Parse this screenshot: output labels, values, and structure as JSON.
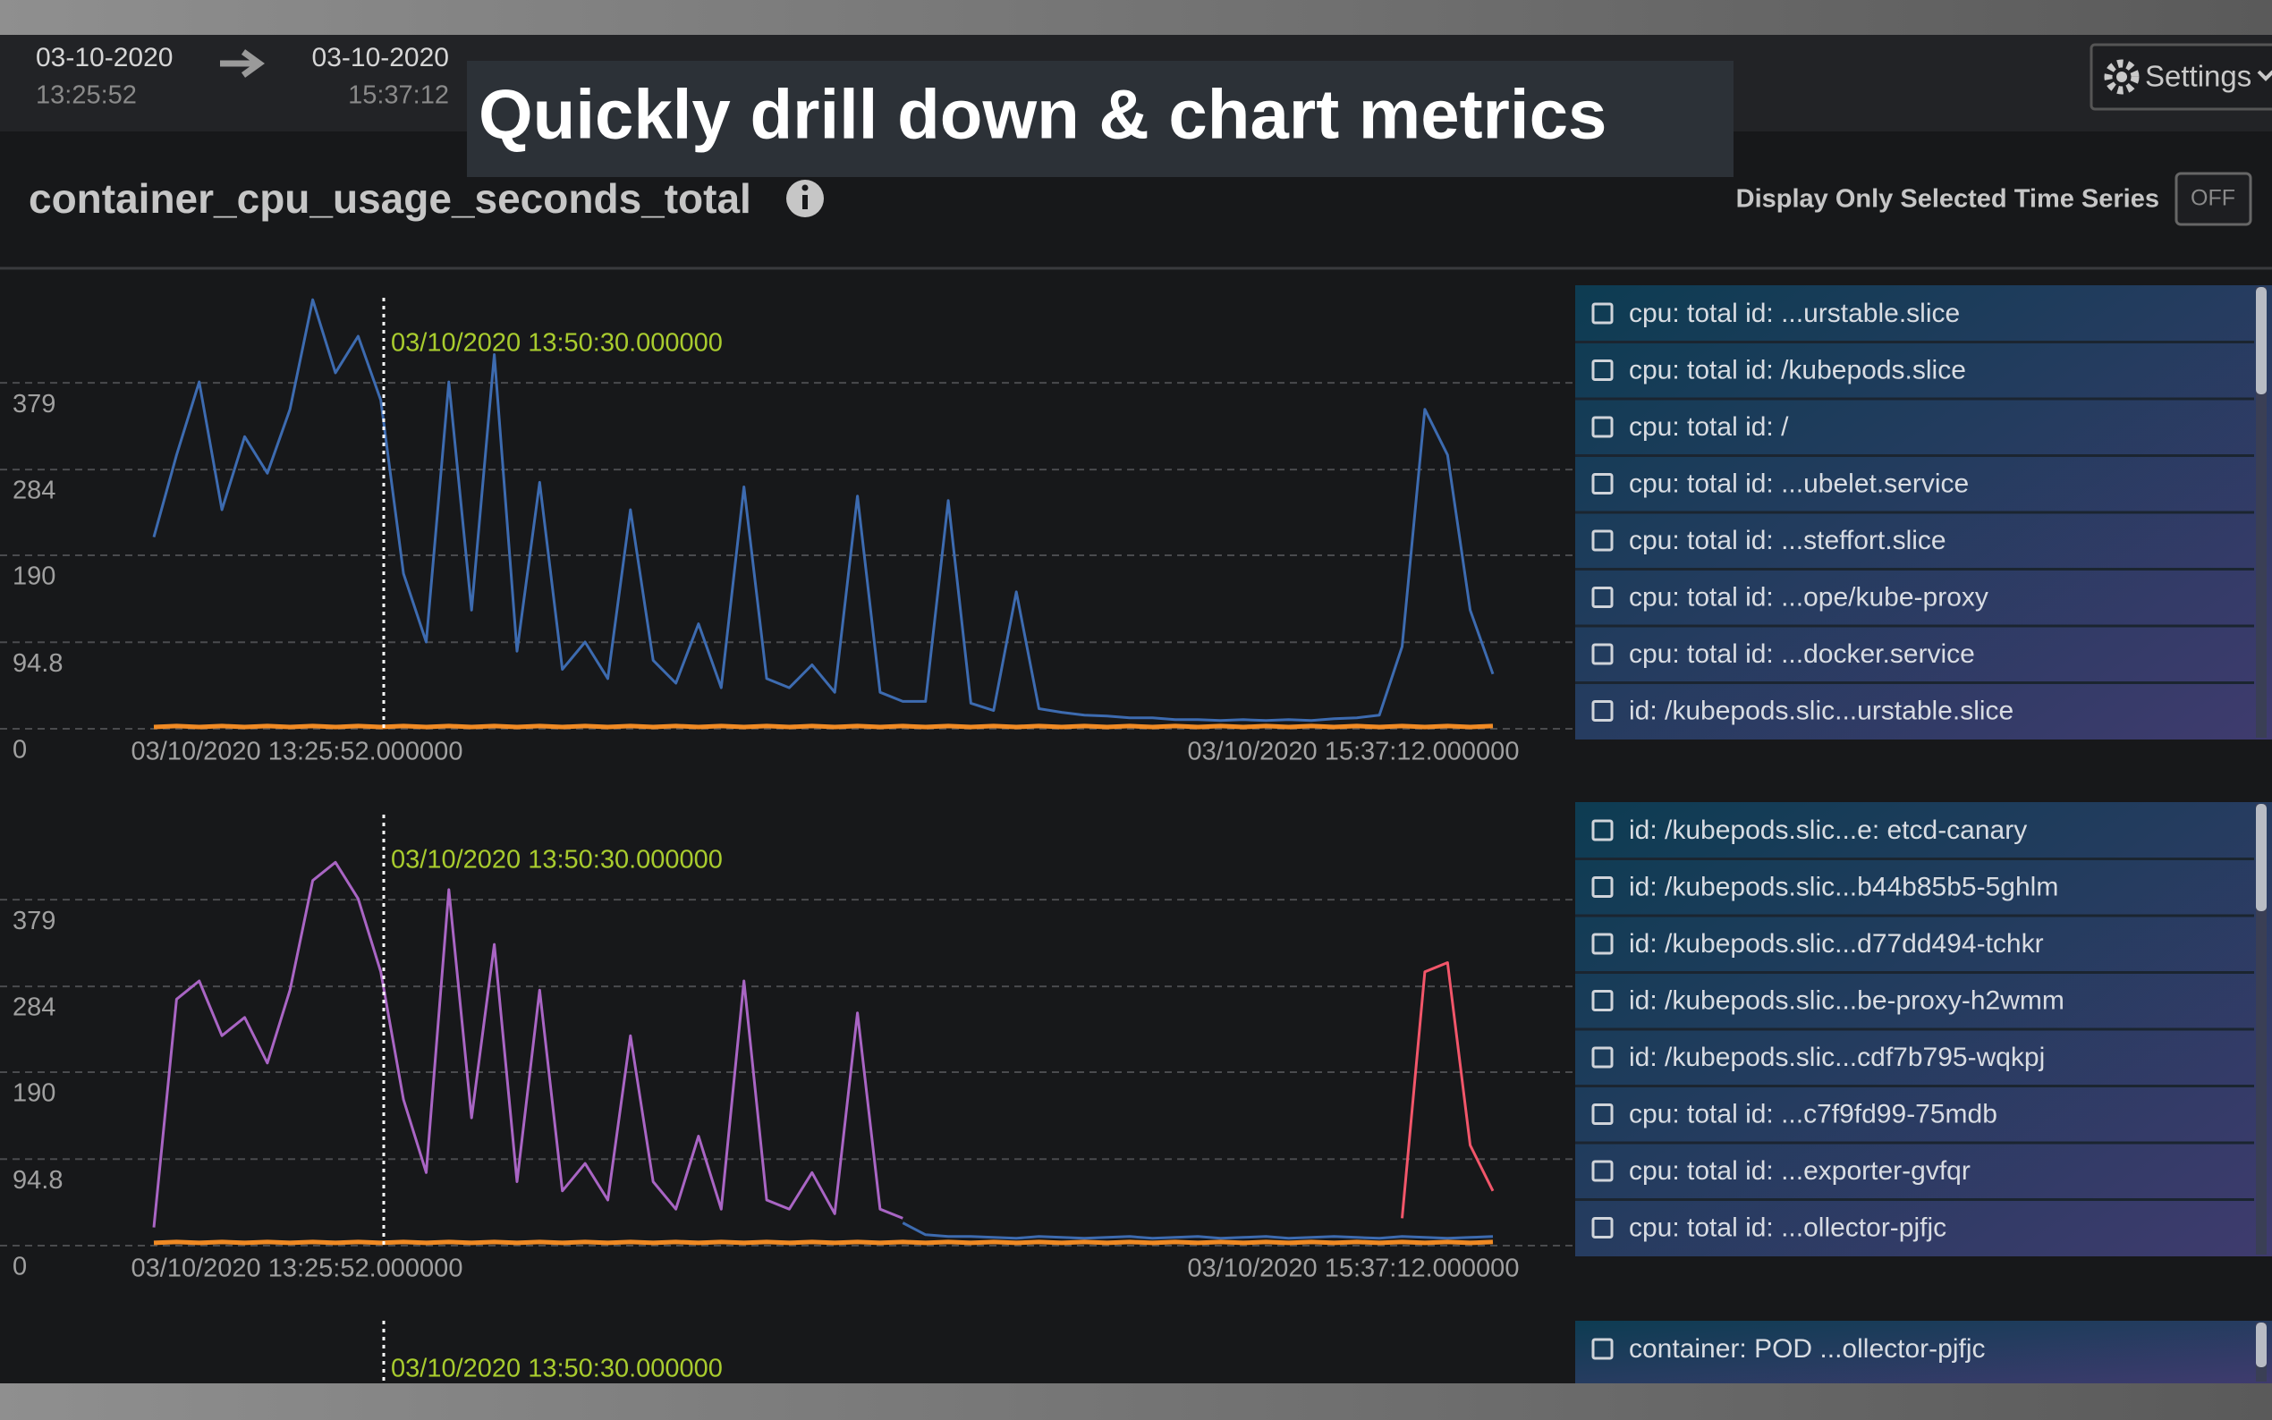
{
  "header": {
    "start_date": "03-10-2020",
    "start_time": "13:25:52",
    "end_date": "03-10-2020",
    "end_time": "15:37:12",
    "banner": "Quickly drill down & chart metrics",
    "settings": "Settings"
  },
  "metric": {
    "title": "container_cpu_usage_seconds_total",
    "toggle_label": "Display Only Selected Time Series",
    "toggle_state": "OFF"
  },
  "panels": [
    {
      "type": "line",
      "ylim": [
        0,
        480
      ],
      "yticks": [
        0,
        94.8,
        190,
        284,
        379
      ],
      "grid": true,
      "x_labels": [
        "03/10/2020 13:25:52.000000",
        "03/10/2020 15:37:12.000000"
      ],
      "cursor_label": "03/10/2020 13:50:30.000000",
      "series": [
        {
          "color": "#3d6bb0",
          "values": [
            210,
            300,
            380,
            240,
            320,
            280,
            350,
            470,
            390,
            430,
            360,
            170,
            95,
            380,
            130,
            410,
            85,
            270,
            65,
            95,
            55,
            240,
            75,
            50,
            115,
            45,
            265,
            55,
            45,
            70,
            40,
            255,
            40,
            30,
            30,
            250,
            28,
            20,
            150,
            22,
            18,
            15,
            14,
            12,
            12,
            10,
            10,
            9,
            10,
            9,
            10,
            9,
            11,
            12,
            15,
            90,
            350,
            300,
            130,
            60
          ]
        },
        {
          "color": "#f08a24",
          "values": [
            2,
            3,
            2,
            3,
            2,
            3,
            2,
            3,
            2,
            3,
            2,
            3,
            2,
            3,
            2,
            3,
            2,
            3,
            2,
            3,
            2,
            3,
            2,
            3,
            2,
            3,
            2,
            3,
            2,
            3,
            2,
            3,
            2,
            3,
            2,
            3,
            2,
            3,
            2,
            3,
            2,
            3,
            2,
            3,
            2,
            3,
            2,
            3,
            2,
            3,
            2,
            3,
            2,
            3,
            2,
            3,
            2,
            3,
            2,
            3
          ]
        }
      ],
      "legend": [
        "cpu: total id: ...urstable.slice",
        "cpu: total id: /kubepods.slice",
        "cpu: total id: /",
        "cpu: total id: ...ubelet.service",
        "cpu: total id: ...steffort.slice",
        "cpu: total id: ...ope/kube-proxy",
        "cpu: total id: ...docker.service",
        "id: /kubepods.slic...urstable.slice"
      ]
    },
    {
      "type": "line",
      "ylim": [
        0,
        480
      ],
      "yticks": [
        0,
        94.8,
        190,
        284,
        379
      ],
      "grid": true,
      "x_labels": [
        "03/10/2020 13:25:52.000000",
        "03/10/2020 15:37:12.000000"
      ],
      "cursor_label": "03/10/2020 13:50:30.000000",
      "series": [
        {
          "color": "#a965c4",
          "values": [
            20,
            270,
            290,
            230,
            250,
            200,
            280,
            400,
            420,
            380,
            300,
            160,
            80,
            390,
            140,
            330,
            70,
            280,
            60,
            90,
            50,
            230,
            70,
            40,
            120,
            40,
            290,
            50,
            40,
            80,
            35,
            255,
            40,
            30,
            null,
            null,
            null,
            null,
            null,
            null,
            null,
            null,
            null,
            null,
            null,
            null,
            null,
            null,
            null,
            null,
            null,
            null,
            null,
            null,
            null,
            null,
            null,
            null,
            null,
            null
          ]
        },
        {
          "color": "#3d6bb0",
          "values": [
            null,
            null,
            null,
            null,
            null,
            null,
            null,
            null,
            null,
            null,
            null,
            null,
            null,
            null,
            null,
            null,
            null,
            null,
            null,
            null,
            null,
            null,
            null,
            null,
            null,
            null,
            null,
            null,
            null,
            null,
            null,
            null,
            null,
            25,
            12,
            10,
            10,
            9,
            8,
            10,
            9,
            8,
            9,
            10,
            8,
            9,
            10,
            8,
            9,
            10,
            8,
            9,
            10,
            9,
            8,
            10,
            9,
            8,
            9,
            10
          ]
        },
        {
          "color": "#f2566a",
          "values": [
            null,
            null,
            null,
            null,
            null,
            null,
            null,
            null,
            null,
            null,
            null,
            null,
            null,
            null,
            null,
            null,
            null,
            null,
            null,
            null,
            null,
            null,
            null,
            null,
            null,
            null,
            null,
            null,
            null,
            null,
            null,
            null,
            null,
            null,
            null,
            null,
            null,
            null,
            null,
            null,
            null,
            null,
            null,
            null,
            null,
            null,
            null,
            null,
            null,
            null,
            null,
            null,
            null,
            null,
            null,
            30,
            300,
            310,
            110,
            60
          ]
        },
        {
          "color": "#f08a24",
          "values": [
            3,
            4,
            3,
            4,
            3,
            4,
            3,
            4,
            3,
            4,
            3,
            4,
            3,
            4,
            3,
            4,
            3,
            4,
            3,
            4,
            3,
            4,
            3,
            4,
            3,
            4,
            3,
            4,
            3,
            4,
            3,
            4,
            3,
            4,
            3,
            4,
            3,
            4,
            3,
            4,
            3,
            4,
            3,
            4,
            3,
            4,
            3,
            4,
            3,
            4,
            3,
            4,
            3,
            4,
            3,
            4,
            3,
            4,
            3,
            4
          ]
        }
      ],
      "legend": [
        "id: /kubepods.slic...e: etcd-canary",
        "id: /kubepods.slic...b44b85b5-5ghlm",
        "id: /kubepods.slic...d77dd494-tchkr",
        "id: /kubepods.slic...be-proxy-h2wmm",
        "id: /kubepods.slic...cdf7b795-wqkpj",
        "cpu: total id: ...c7f9fd99-75mdb",
        "cpu: total id: ...exporter-gvfqr",
        "cpu: total id: ...ollector-pjfjc"
      ]
    },
    {
      "type": "line",
      "cursor_label": "03/10/2020 13:50:30.000000",
      "legend": [
        "container: POD ...ollector-pjfjc"
      ]
    }
  ]
}
